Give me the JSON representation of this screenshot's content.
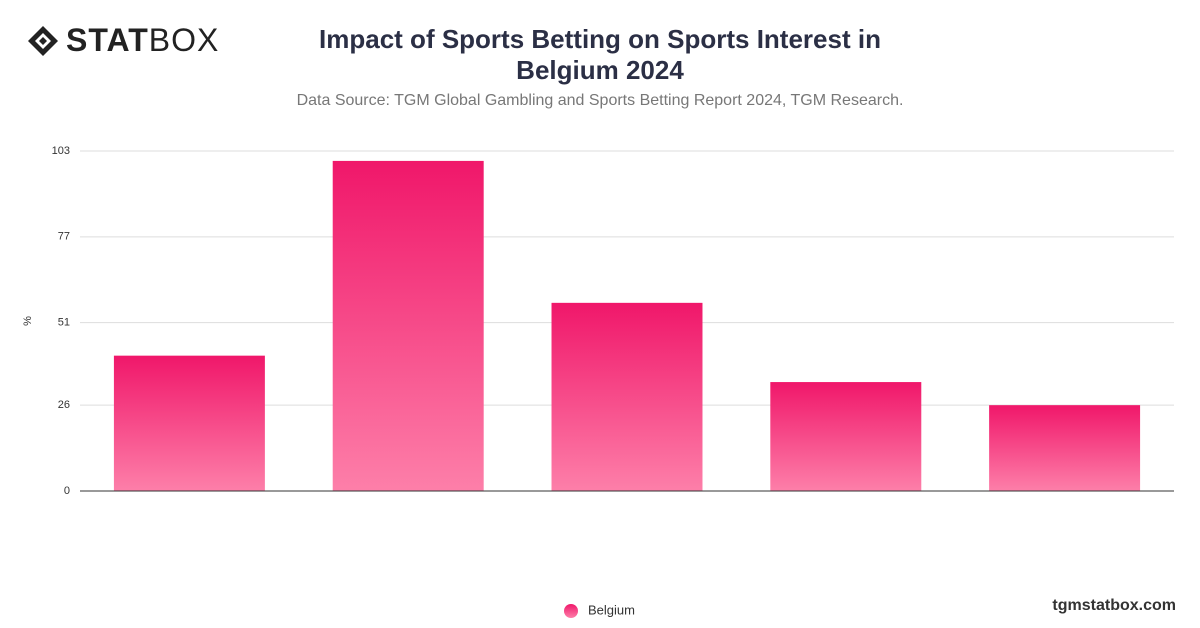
{
  "logo": {
    "bold": "STAT",
    "light": "BOX"
  },
  "footer": "tgmstatbox.com",
  "chart_data": {
    "type": "bar",
    "title": "Impact of Sports Betting on Sports Interest in Belgium 2024",
    "subtitle": "Data Source: TGM Global Gambling and Sports Betting Report 2024, TGM Research.",
    "y_label": "%",
    "categories": [
      null,
      null,
      null,
      null,
      null
    ],
    "series": [
      {
        "name": "Belgium",
        "color": "#f0176a",
        "values": [
          41,
          100,
          57,
          33,
          26
        ]
      }
    ],
    "ylim": [
      0,
      103
    ],
    "yticks": [
      0,
      26,
      51,
      77,
      103
    ],
    "grid": true,
    "legend": "bottom"
  }
}
